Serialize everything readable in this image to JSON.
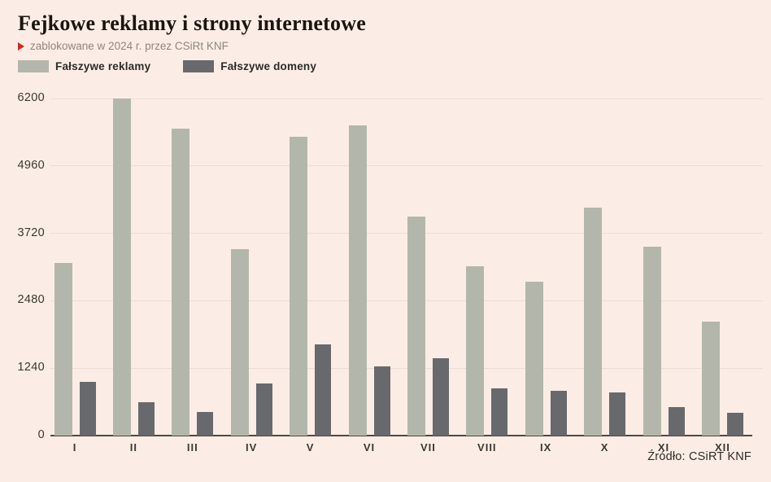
{
  "header": {
    "title": "Fejkowe reklamy i strony internetowe",
    "subtitle": "zablokowane w 2024 r. przez CSiRt KNF"
  },
  "legend": {
    "items": [
      {
        "label": "Fałszywe reklamy",
        "color": "#b3b7ab"
      },
      {
        "label": "Fałszywe domeny",
        "color": "#68696c"
      }
    ]
  },
  "chart_data": {
    "type": "bar",
    "title": "Fejkowe reklamy i strony internetowe",
    "subtitle": "zablokowane w 2024 r. przez CSiRt KNF",
    "categories": [
      "I",
      "II",
      "III",
      "IV",
      "V",
      "VI",
      "VII",
      "VIII",
      "IX",
      "X",
      "XI",
      "XII"
    ],
    "series": [
      {
        "name": "Fałszywe reklamy",
        "color": "#b3b7ab",
        "values": [
          3170,
          6200,
          5650,
          3430,
          5500,
          5710,
          4030,
          3110,
          2830,
          4200,
          3470,
          2100
        ]
      },
      {
        "name": "Fałszywe domeny",
        "color": "#68696c",
        "values": [
          990,
          620,
          430,
          960,
          1670,
          1280,
          1430,
          870,
          830,
          800,
          520,
          420
        ]
      }
    ],
    "xlabel": "",
    "ylabel": "",
    "ylim": [
      0,
      6200
    ],
    "yticks": [
      0,
      1240,
      2480,
      3720,
      4960,
      6200
    ],
    "grid": true,
    "legend_position": "top-left"
  },
  "source": "Źródło: CSiRT KNF",
  "colors": {
    "background": "#fbede5",
    "gridline": "#eddcd4",
    "axis": "#4c4a45",
    "accent_red": "#d1281e",
    "bar_light": "#b3b7ab",
    "bar_dark": "#68696c"
  }
}
